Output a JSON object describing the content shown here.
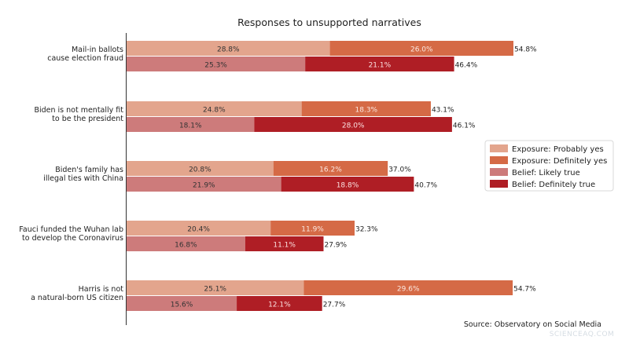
{
  "chart_data": {
    "type": "bar",
    "orientation": "horizontal",
    "stacked": true,
    "title": "Responses to unsupported narratives",
    "categories": [
      "Mail-in ballots\ncause election fraud",
      "Biden is not mentally fit\nto be the president",
      "Biden's family has\nillegal ties with China",
      "Fauci funded the Wuhan lab\nto develop the Coronavirus",
      "Harris is not\na natural-born US citizen"
    ],
    "groups": [
      {
        "totals": [
          "54.8%",
          "43.1%",
          "37.0%",
          "32.3%",
          "54.7%"
        ],
        "series": [
          {
            "name": "Exposure: Probably yes",
            "color": "#e3a58d",
            "label_color": "#333333",
            "values": [
              28.8,
              24.8,
              20.8,
              20.4,
              25.1
            ]
          },
          {
            "name": "Exposure: Definitely yes",
            "color": "#d56a46",
            "label_color": "#fbe9e2",
            "values": [
              26.0,
              18.3,
              16.2,
              11.9,
              29.6
            ]
          }
        ]
      },
      {
        "totals": [
          "46.4%",
          "46.1%",
          "40.7%",
          "27.9%",
          "27.7%"
        ],
        "series": [
          {
            "name": "Belief: Likely true",
            "color": "#cd7b7b",
            "label_color": "#333333",
            "values": [
              25.3,
              18.1,
              21.9,
              16.8,
              15.6
            ]
          },
          {
            "name": "Belief: Definitely true",
            "color": "#af1e25",
            "label_color": "#fbe0e0",
            "values": [
              21.1,
              28.0,
              18.8,
              11.1,
              12.1
            ]
          }
        ]
      }
    ],
    "value_suffix": "%",
    "xlim": [
      0,
      56
    ],
    "grid": false,
    "legend_position": "right",
    "source": "Source: Observatory on Social Media"
  },
  "watermark": "SCIENCEAQ.COM"
}
